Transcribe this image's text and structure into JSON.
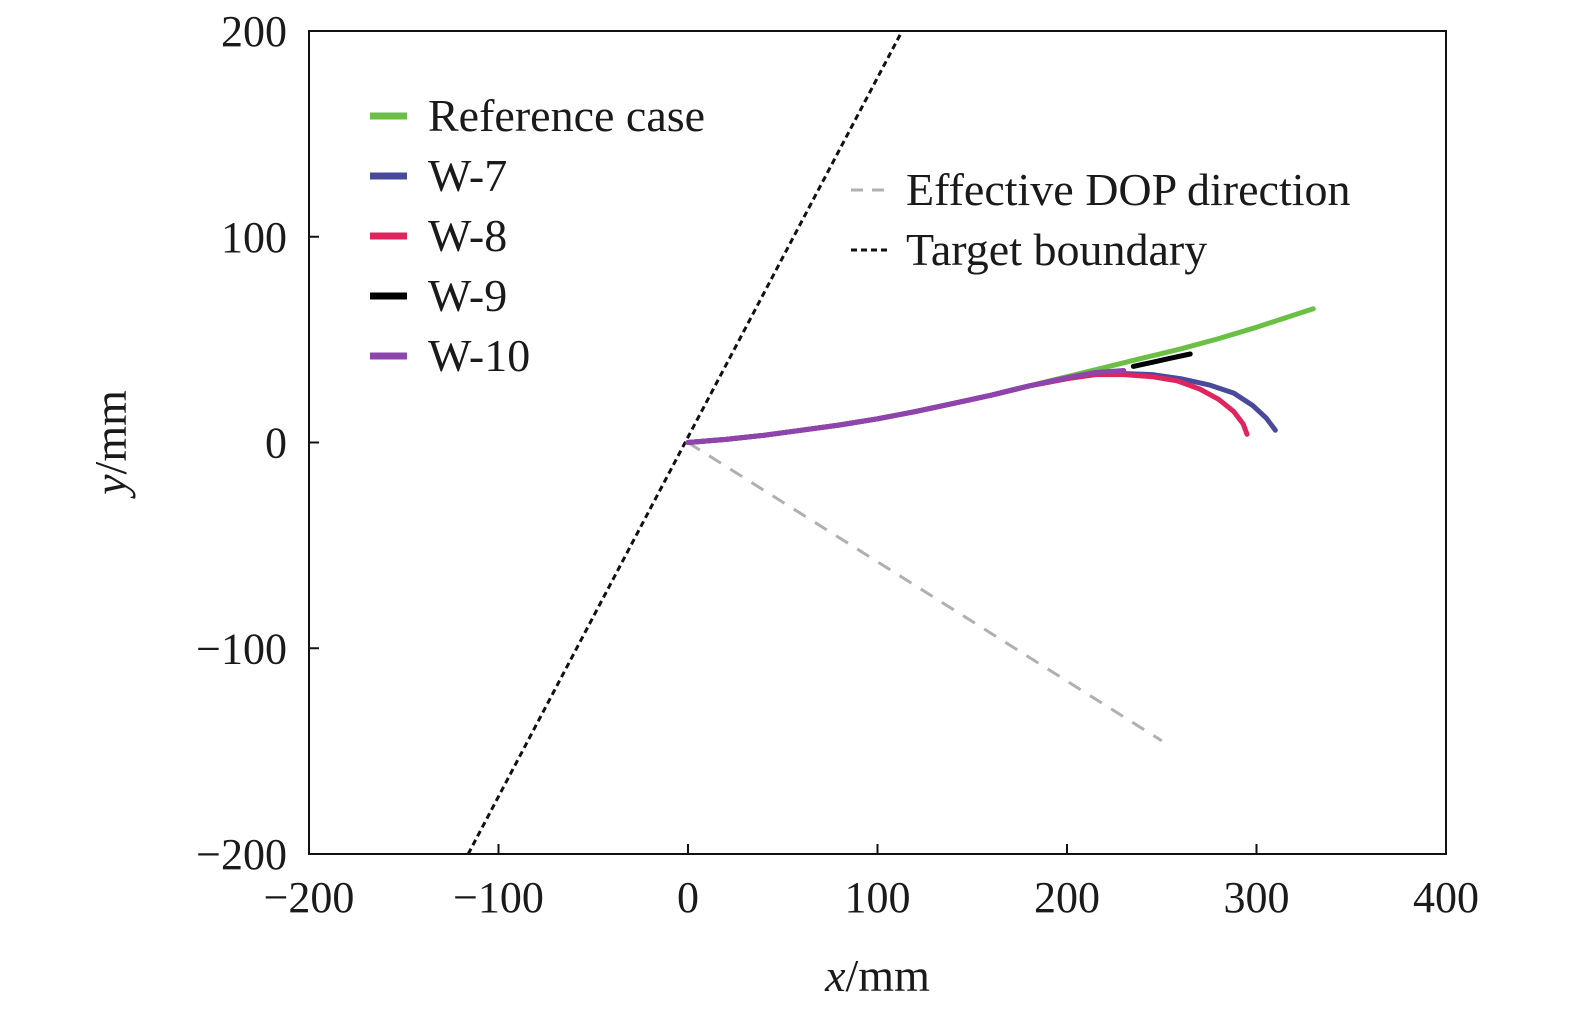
{
  "chart_data": {
    "type": "line",
    "xlabel": {
      "var": "x",
      "unit": "/mm"
    },
    "ylabel": {
      "var": "y",
      "unit": "/mm"
    },
    "xlim": [
      -200,
      400
    ],
    "ylim": [
      -200,
      200
    ],
    "xticks": [
      -200,
      -100,
      0,
      100,
      200,
      300,
      400
    ],
    "xtick_labels": [
      "−200",
      "−100",
      "0",
      "100",
      "200",
      "300",
      "400"
    ],
    "yticks": [
      -200,
      -100,
      0,
      100,
      200
    ],
    "ytick_labels": [
      "−200",
      "−100",
      "0",
      "100",
      "200"
    ],
    "grid": false,
    "series": [
      {
        "name": "Reference case",
        "color": "#6bbf45",
        "dash": "solid",
        "points": [
          [
            0,
            0
          ],
          [
            20,
            1.5
          ],
          [
            40,
            3.5
          ],
          [
            60,
            6
          ],
          [
            80,
            8.5
          ],
          [
            100,
            11.5
          ],
          [
            120,
            15
          ],
          [
            140,
            19
          ],
          [
            160,
            23
          ],
          [
            180,
            27.5
          ],
          [
            200,
            32
          ],
          [
            220,
            36.5
          ],
          [
            240,
            41
          ],
          [
            260,
            45.5
          ],
          [
            280,
            50.5
          ],
          [
            300,
            56
          ],
          [
            320,
            62
          ],
          [
            330,
            65
          ]
        ]
      },
      {
        "name": "W-7",
        "color": "#4a4a9c",
        "dash": "solid",
        "points": [
          [
            0,
            0
          ],
          [
            20,
            1.5
          ],
          [
            40,
            3.5
          ],
          [
            60,
            6
          ],
          [
            80,
            8.5
          ],
          [
            100,
            11.5
          ],
          [
            120,
            15
          ],
          [
            140,
            19
          ],
          [
            160,
            23
          ],
          [
            180,
            27.5
          ],
          [
            200,
            31
          ],
          [
            215,
            33.5
          ],
          [
            230,
            33.5
          ],
          [
            245,
            33
          ],
          [
            260,
            31
          ],
          [
            275,
            28
          ],
          [
            288,
            24
          ],
          [
            298,
            18
          ],
          [
            305,
            12
          ],
          [
            310,
            6
          ]
        ]
      },
      {
        "name": "W-8",
        "color": "#e0245e",
        "dash": "solid",
        "points": [
          [
            0,
            0
          ],
          [
            20,
            1.5
          ],
          [
            40,
            3.5
          ],
          [
            60,
            6
          ],
          [
            80,
            8.5
          ],
          [
            100,
            11.5
          ],
          [
            120,
            15
          ],
          [
            140,
            19
          ],
          [
            160,
            23
          ],
          [
            180,
            27.5
          ],
          [
            200,
            31
          ],
          [
            215,
            33
          ],
          [
            230,
            33
          ],
          [
            245,
            32
          ],
          [
            258,
            30
          ],
          [
            270,
            26
          ],
          [
            280,
            21
          ],
          [
            288,
            15
          ],
          [
            293,
            9
          ],
          [
            295,
            4
          ]
        ]
      },
      {
        "name": "W-9",
        "color": "#000000",
        "dash": "solid",
        "points": [
          [
            235,
            37
          ],
          [
            245,
            39
          ],
          [
            255,
            41
          ],
          [
            265,
            43
          ]
        ]
      },
      {
        "name": "W-10",
        "color": "#8e44ad",
        "dash": "solid",
        "points": [
          [
            0,
            0
          ],
          [
            20,
            1.5
          ],
          [
            40,
            3.5
          ],
          [
            60,
            6
          ],
          [
            80,
            8.5
          ],
          [
            100,
            11.5
          ],
          [
            120,
            15
          ],
          [
            140,
            19
          ],
          [
            160,
            23
          ],
          [
            180,
            27.5
          ],
          [
            200,
            31.5
          ],
          [
            215,
            34
          ],
          [
            230,
            35
          ]
        ]
      },
      {
        "name": "Effective DOP direction",
        "color": "#b0b0b0",
        "dash": "dashed",
        "points": [
          [
            0,
            0
          ],
          [
            250,
            -145
          ]
        ]
      },
      {
        "name": "Target boundary",
        "color": "#111111",
        "dash": "dotted",
        "points": [
          [
            -116,
            -200
          ],
          [
            113,
            200
          ]
        ]
      }
    ]
  }
}
